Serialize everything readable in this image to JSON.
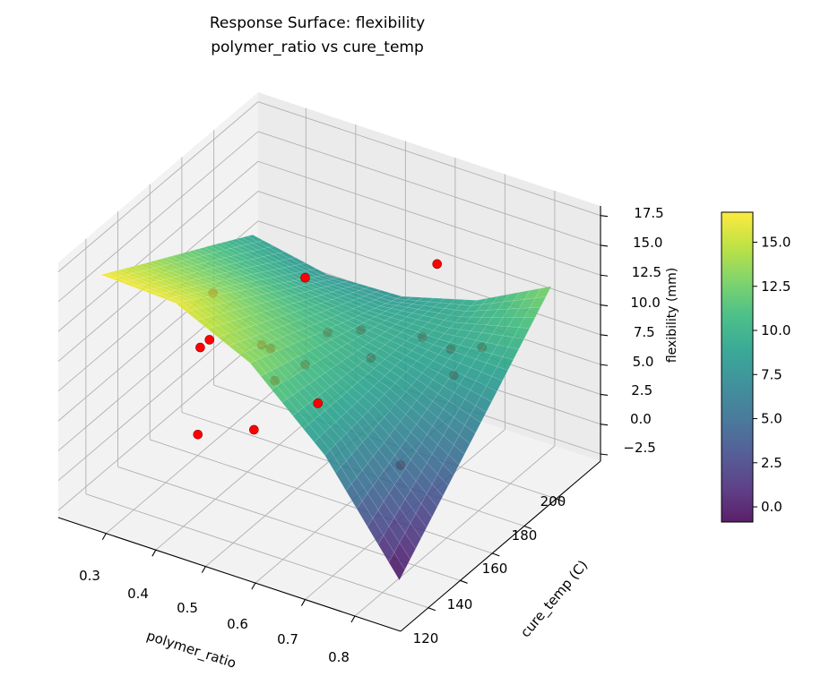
{
  "chart_data": {
    "type": "surface3d",
    "title": "Response Surface: flexibility",
    "subtitle": "polymer_ratio vs cure_temp",
    "xlabel": "polymer_ratio",
    "ylabel": "cure_temp (C)",
    "zlabel": "flexibility (mm)",
    "xlim": [
      0.204,
      0.892
    ],
    "ylim": [
      102.7,
      227.7
    ],
    "zlim": [
      -3.1,
      18.3
    ],
    "x_ticks": [
      "0.3",
      "0.4",
      "0.5",
      "0.6",
      "0.7",
      "0.8"
    ],
    "y_ticks": [
      "120",
      "140",
      "160",
      "180",
      "200"
    ],
    "z_ticks": [
      "−2.5",
      "0.0",
      "2.5",
      "5.0",
      "7.5",
      "10.0",
      "12.5",
      "15.0",
      "17.5"
    ],
    "colormap": "viridis",
    "colorbar_range": [
      -0.86,
      16.7
    ],
    "colorbar_ticks": [
      "0.0",
      "2.5",
      "5.0",
      "7.5",
      "10.0",
      "12.5",
      "15.0"
    ],
    "grid": true,
    "surface": {
      "x": [
        0.25,
        0.4,
        0.55,
        0.7,
        0.85
      ],
      "y": [
        115,
        138.75,
        162.5,
        186.25,
        210
      ],
      "z": [
        [
          16.5,
          14.6,
          12.75,
          10.9,
          9.0
        ],
        [
          16.2,
          14.1,
          12.0,
          9.87,
          7.75
        ],
        [
          13.25,
          11.94,
          10.6,
          9.3,
          8.0
        ],
        [
          7.6,
          8.1,
          8.7,
          9.2,
          9.75
        ],
        [
          -0.8,
          2.65,
          6.1,
          9.55,
          13.0
        ]
      ]
    },
    "points_color": "#ff0000",
    "points": [
      {
        "x": 0.445,
        "y": 115,
        "z": 5.8,
        "visible": true
      },
      {
        "x": 0.5,
        "y": 165,
        "z": 14.0,
        "visible": true
      },
      {
        "x": 0.643,
        "y": 203,
        "z": 12.8,
        "visible": true
      },
      {
        "x": 0.606,
        "y": 140,
        "z": 7.8,
        "visible": true
      },
      {
        "x": 0.273,
        "y": 178,
        "z": 8.1,
        "visible": false
      },
      {
        "x": 0.388,
        "y": 140,
        "z": 10.1,
        "visible": false
      },
      {
        "x": 0.408,
        "y": 128,
        "z": 11.1,
        "visible": false
      },
      {
        "x": 0.371,
        "y": 178,
        "z": 5.1,
        "visible": false
      },
      {
        "x": 0.469,
        "y": 153,
        "z": 9.0,
        "visible": false
      },
      {
        "x": 0.5,
        "y": 165,
        "z": 6.7,
        "visible": false
      },
      {
        "x": 0.558,
        "y": 128,
        "z": 10.4,
        "visible": false
      },
      {
        "x": 0.423,
        "y": 203,
        "z": 4.0,
        "visible": false
      },
      {
        "x": 0.532,
        "y": 190,
        "z": 7.2,
        "visible": false
      },
      {
        "x": 0.632,
        "y": 165,
        "z": 9.1,
        "visible": false
      },
      {
        "x": 0.594,
        "y": 209,
        "z": 5.3,
        "visible": false
      },
      {
        "x": 0.712,
        "y": 190,
        "z": 8.1,
        "visible": false
      },
      {
        "x": 0.714,
        "y": 209,
        "z": 6.1,
        "visible": false
      },
      {
        "x": 0.757,
        "y": 178,
        "z": 7.9,
        "visible": false
      },
      {
        "x": 0.516,
        "y": 128,
        "z": 5.7,
        "visible": false
      },
      {
        "x": 0.772,
        "y": 140,
        "z": 4.9,
        "visible": false
      }
    ]
  }
}
